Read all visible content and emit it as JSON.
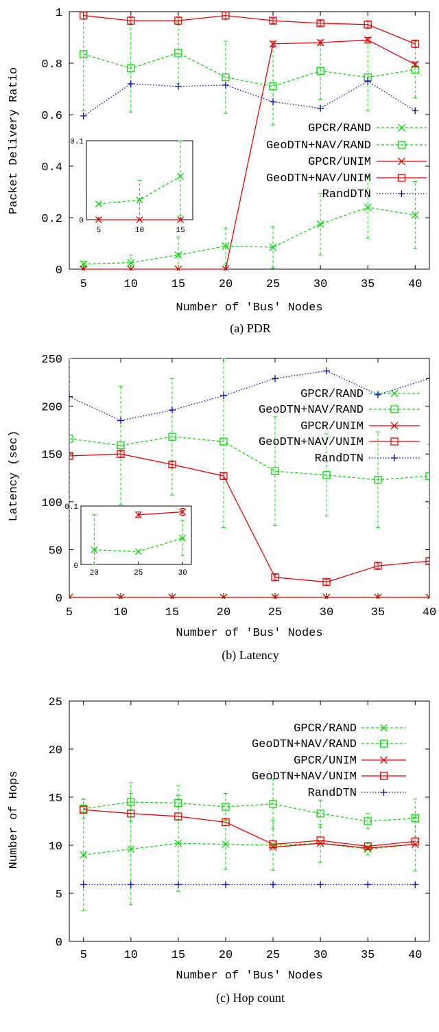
{
  "chart_data": [
    {
      "type": "line",
      "caption": "(a) PDR",
      "xlabel": "Number of 'Bus' Nodes",
      "ylabel": "Packet Delivery Ratio",
      "x": [
        5,
        10,
        15,
        20,
        25,
        30,
        35,
        40
      ],
      "xlim": [
        3.5,
        41.5
      ],
      "ylim": [
        0,
        1
      ],
      "yticks": [
        0,
        0.2,
        0.4,
        0.6,
        0.8,
        1
      ],
      "ytick_labels": [
        "0",
        "0.2",
        "0.4",
        "0.6",
        "0.8",
        "1"
      ],
      "grid": false,
      "legend_position": "right",
      "series": [
        {
          "name": "GPCR/RAND",
          "values": [
            0.02,
            0.025,
            0.055,
            0.09,
            0.085,
            0.175,
            0.24,
            0.21
          ],
          "errors": [
            0.01,
            0.03,
            0.07,
            0.07,
            0.08,
            0.12,
            0.12,
            0.13
          ],
          "color": "#00dd00",
          "marker": "x",
          "dash": "dashed"
        },
        {
          "name": "GeoDTN+NAV/RAND",
          "values": [
            0.835,
            0.78,
            0.84,
            0.745,
            0.71,
            0.77,
            0.745,
            0.775
          ],
          "errors": [
            0.22,
            0.17,
            0.12,
            0.14,
            0.15,
            0.11,
            0.13,
            0.11
          ],
          "color": "#00dd00",
          "marker": "square",
          "dash": "dashed"
        },
        {
          "name": "GPCR/UNIM",
          "values": [
            0,
            0,
            0,
            0,
            0.875,
            0.88,
            0.89,
            0.795
          ],
          "errors": [
            0,
            0,
            0,
            0,
            0.01,
            0.01,
            0.01,
            0.01
          ],
          "color": "#ee0000",
          "marker": "x",
          "dash": "solid"
        },
        {
          "name": "GeoDTN+NAV/UNIM",
          "values": [
            0.985,
            0.965,
            0.965,
            0.985,
            0.965,
            0.955,
            0.95,
            0.875
          ],
          "errors": [
            0.015,
            0.015,
            0.015,
            0.015,
            0.01,
            0.01,
            0.015,
            0.015
          ],
          "color": "#ee0000",
          "marker": "square",
          "dash": "solid"
        },
        {
          "name": "RandDTN",
          "values": [
            0.595,
            0.72,
            0.71,
            0.715,
            0.65,
            0.625,
            0.73,
            0.615
          ],
          "errors": [
            0,
            0,
            0,
            0,
            0,
            0,
            0,
            0
          ],
          "color": "#0000cc",
          "marker": "plus",
          "dash": "dotted"
        }
      ],
      "inset": {
        "x": [
          5,
          10,
          15
        ],
        "xlim": [
          3.5,
          16.5
        ],
        "ylim": [
          0,
          0.1
        ],
        "ytick_labels": [
          "0",
          "0.1"
        ],
        "series": [
          {
            "name": "GPCR/RAND",
            "values": [
              0.02,
              0.025,
              0.055
            ],
            "errors": [
              0.0,
              0.025,
              0.05
            ],
            "color": "#00dd00",
            "marker": "x",
            "dash": "dashed"
          },
          {
            "name": "GPCR/UNIM",
            "values": [
              0,
              0,
              0
            ],
            "errors": [
              0,
              0,
              0
            ],
            "color": "#ee0000",
            "marker": "x",
            "dash": "solid"
          }
        ]
      }
    },
    {
      "type": "line",
      "caption": "(b) Latency",
      "xlabel": "Number of 'Bus' Nodes",
      "ylabel": "Latency (sec)",
      "x": [
        5,
        10,
        15,
        20,
        25,
        30,
        35,
        40
      ],
      "xlim": [
        5,
        40
      ],
      "ylim": [
        0,
        250
      ],
      "yticks": [
        0,
        50,
        100,
        150,
        200,
        250
      ],
      "ytick_labels": [
        "0",
        "50",
        "100",
        "150",
        "200",
        "250"
      ],
      "grid": false,
      "legend_position": "right",
      "series": [
        {
          "name": "GPCR/RAND",
          "values": [
            0,
            0,
            0,
            0,
            0,
            0,
            0,
            0
          ],
          "errors": [
            0,
            0,
            0,
            0,
            0,
            0,
            0,
            0
          ],
          "color": "#00dd00",
          "marker": "x",
          "dash": "dashed"
        },
        {
          "name": "GeoDTN+NAV/RAND",
          "values": [
            166,
            159,
            168,
            163,
            132,
            128,
            123,
            127
          ],
          "errors": [
            85,
            62,
            61,
            90,
            57,
            43,
            50,
            33
          ],
          "color": "#00dd00",
          "marker": "square",
          "dash": "dashed"
        },
        {
          "name": "GPCR/UNIM",
          "values": [
            0,
            0,
            0,
            0,
            0,
            0,
            0,
            0
          ],
          "errors": [
            0,
            0,
            0,
            0,
            0,
            0,
            0,
            0
          ],
          "color": "#ee0000",
          "marker": "x",
          "dash": "solid"
        },
        {
          "name": "GeoDTN+NAV/UNIM",
          "values": [
            148,
            150,
            139,
            127,
            21,
            16,
            33,
            38
          ],
          "errors": [
            3,
            3,
            3,
            3,
            3,
            3,
            3,
            3
          ],
          "color": "#ee0000",
          "marker": "square",
          "dash": "solid"
        },
        {
          "name": "RandDTN",
          "values": [
            210,
            185,
            196,
            211,
            229,
            237,
            212,
            229
          ],
          "errors": [
            0,
            0,
            0,
            0,
            0,
            0,
            0,
            0
          ],
          "color": "#0000cc",
          "marker": "plus",
          "dash": "dotted"
        }
      ],
      "inset": {
        "x": [
          20,
          25,
          30
        ],
        "xlim": [
          18.5,
          31
        ],
        "ylim": [
          0,
          0.1
        ],
        "ytick_labels": [
          "0",
          "0.1"
        ],
        "series": [
          {
            "name": "GPCR/RAND",
            "values": [
              0.025,
              0.022,
              0.045
            ],
            "errors": [
              0.06,
              0,
              0.03
            ],
            "color": "#00dd00",
            "marker": "x",
            "dash": "dashed"
          },
          {
            "name": "GPCR/UNIM",
            "values": [
              null,
              0.085,
              0.09
            ],
            "errors": [
              0,
              0.005,
              0.006
            ],
            "color": "#ee0000",
            "marker": "x",
            "dash": "solid"
          }
        ]
      }
    },
    {
      "type": "line",
      "caption": "(c) Hop count",
      "xlabel": "Number of 'Bus' Nodes",
      "ylabel": "Number of Hops",
      "x": [
        5,
        10,
        15,
        20,
        25,
        30,
        35,
        40
      ],
      "xlim": [
        3.5,
        41.5
      ],
      "ylim": [
        0,
        25
      ],
      "yticks": [
        0,
        5,
        10,
        15,
        20,
        25
      ],
      "ytick_labels": [
        "0",
        "5",
        "10",
        "15",
        "20",
        "25"
      ],
      "grid": false,
      "legend_position": "top-right",
      "series": [
        {
          "name": "GPCR/RAND",
          "values": [
            9.0,
            9.6,
            10.2,
            10.1,
            10.0,
            10.2,
            9.6,
            10.1
          ],
          "errors": [
            5.8,
            5.8,
            5.0,
            2.6,
            2.6,
            2.0,
            0.6,
            2.8
          ],
          "color": "#00dd00",
          "marker": "x",
          "dash": "dashed"
        },
        {
          "name": "GeoDTN+NAV/RAND",
          "values": [
            13.8,
            14.5,
            14.4,
            14.0,
            14.3,
            13.3,
            12.5,
            12.8
          ],
          "errors": [
            1.0,
            2.0,
            1.8,
            1.4,
            2.6,
            1.4,
            0.8,
            2.0
          ],
          "color": "#00dd00",
          "marker": "square",
          "dash": "dashed"
        },
        {
          "name": "GPCR/UNIM",
          "values": [
            null,
            null,
            null,
            null,
            9.8,
            10.2,
            9.7,
            10.1
          ],
          "errors": [
            0,
            0,
            0,
            0,
            0,
            0,
            0,
            0
          ],
          "color": "#ee0000",
          "marker": "x",
          "dash": "solid"
        },
        {
          "name": "GeoDTN+NAV/UNIM",
          "values": [
            13.7,
            13.3,
            13.0,
            12.4,
            10.1,
            10.5,
            9.9,
            10.4
          ],
          "errors": [
            0,
            0,
            0,
            0,
            0,
            0,
            0,
            0
          ],
          "color": "#ee0000",
          "marker": "square",
          "dash": "solid"
        },
        {
          "name": "RandDTN",
          "values": [
            5.9,
            5.9,
            5.9,
            5.9,
            5.9,
            5.9,
            5.9,
            5.9
          ],
          "errors": [
            0,
            0,
            0,
            0,
            0,
            0,
            0,
            0
          ],
          "color": "#0000cc",
          "marker": "plus",
          "dash": "dotted"
        }
      ]
    }
  ]
}
